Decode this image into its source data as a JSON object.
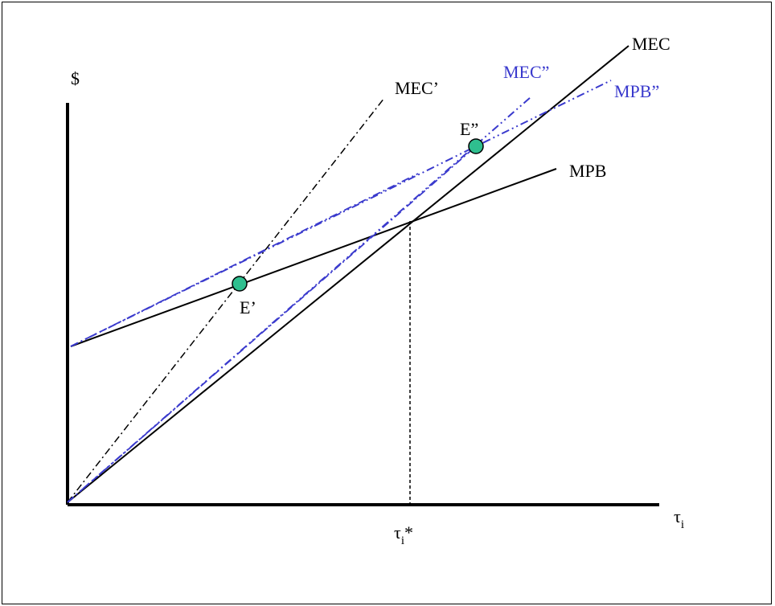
{
  "diagram": {
    "y_axis_label": "$",
    "x_axis_label": {
      "base": "τ",
      "sub": "i"
    },
    "optimum_label": {
      "base": "τ",
      "sub": "i",
      "suffix": "*"
    },
    "curves": {
      "mec": "MEC",
      "mpb": "MPB",
      "mec_prime": "MEC’",
      "mec_dprime": "MEC”",
      "mpb_dprime": "MPB”"
    },
    "points": {
      "e_prime": "E’",
      "e_dprime": "E”"
    },
    "colors": {
      "axis": "#000000",
      "black_curves": "#000000",
      "blue_curves": "#3a3acd",
      "equilibrium_marker": "#2fbf8f"
    }
  }
}
